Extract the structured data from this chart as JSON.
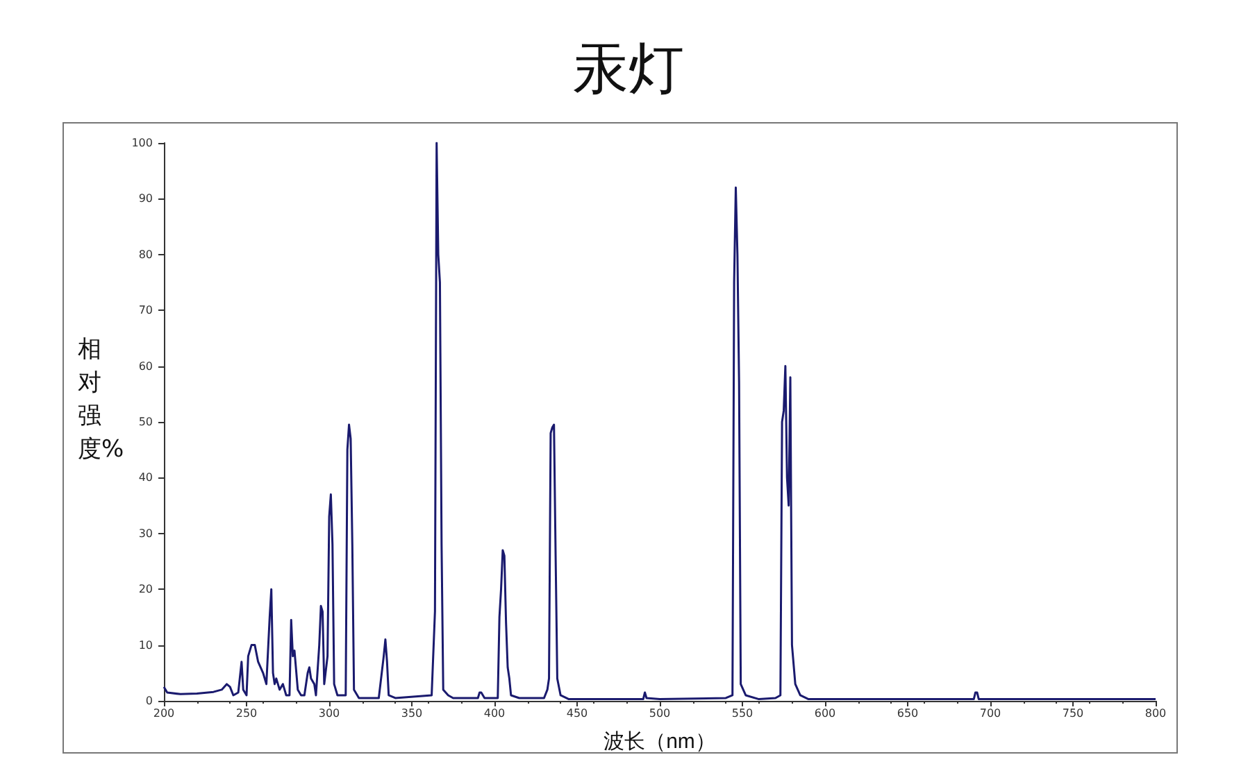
{
  "chart_data": {
    "type": "line",
    "title": "汞灯",
    "xlabel": "波长（nm）",
    "ylabel": "相对强度%",
    "xlim": [
      200,
      800
    ],
    "xticks": [
      200,
      250,
      300,
      350,
      400,
      450,
      500,
      550,
      600,
      650,
      700,
      750,
      800
    ],
    "ylim": [
      0,
      100
    ],
    "yticks": [
      0,
      10,
      20,
      30,
      40,
      50,
      60,
      70,
      80,
      90,
      100
    ],
    "grid": false,
    "marker": "none",
    "line_style": "solid",
    "series": [
      {
        "color": "#1a1a6e",
        "x": [
          200,
          202,
          210,
          220,
          230,
          235,
          238,
          240,
          242,
          245,
          247,
          248,
          250,
          251,
          253,
          255,
          257,
          260,
          262,
          264,
          265,
          266,
          267,
          268,
          270,
          272,
          274,
          276,
          277,
          278,
          279,
          281,
          283,
          285,
          287,
          288,
          289,
          291,
          292,
          294,
          295,
          296,
          297,
          299,
          300,
          301,
          302,
          303,
          305,
          310,
          311,
          312,
          313,
          314,
          315,
          318,
          330,
          333,
          334,
          335,
          336,
          340,
          362,
          364,
          365,
          366,
          367,
          368,
          369,
          372,
          375,
          390,
          391,
          392,
          394,
          402,
          403,
          404,
          405,
          406,
          407,
          408,
          409,
          410,
          415,
          430,
          432,
          433,
          434,
          435,
          436,
          437,
          438,
          440,
          445,
          490,
          491,
          492,
          500,
          540,
          544,
          545,
          546,
          547,
          548,
          549,
          552,
          560,
          570,
          573,
          574,
          575,
          576,
          577,
          578,
          579,
          580,
          582,
          585,
          590,
          690,
          691,
          692,
          693,
          800
        ],
        "values": [
          2.5,
          1.5,
          1.2,
          1.3,
          1.6,
          2,
          3,
          2.5,
          1,
          1.5,
          7,
          2,
          1,
          8,
          10,
          10,
          7,
          5,
          3,
          15,
          20,
          5,
          3,
          4,
          2,
          3,
          1,
          1,
          14.5,
          8,
          9,
          2,
          1,
          1,
          5,
          6,
          4,
          3,
          1,
          10,
          17,
          16,
          3,
          8,
          33,
          37,
          28,
          3,
          1,
          1,
          45,
          49.5,
          47,
          28,
          2,
          0.5,
          0.5,
          8,
          11,
          7,
          1,
          0.5,
          1,
          16,
          100,
          80,
          75,
          28,
          2,
          1,
          0.5,
          0.5,
          1.5,
          1.5,
          0.5,
          0.5,
          15,
          20,
          27,
          26,
          14,
          6,
          4,
          1,
          0.5,
          0.5,
          2,
          4,
          48,
          49,
          49.5,
          26,
          4,
          1,
          0.3,
          0.3,
          1.5,
          0.5,
          0.3,
          0.5,
          1,
          75,
          92,
          80,
          57,
          3,
          1,
          0.3,
          0.5,
          1,
          50,
          52,
          60,
          40,
          35,
          58,
          10,
          3,
          1,
          0.3,
          0.3,
          1.5,
          1.5,
          0.3,
          0.3
        ]
      }
    ]
  }
}
